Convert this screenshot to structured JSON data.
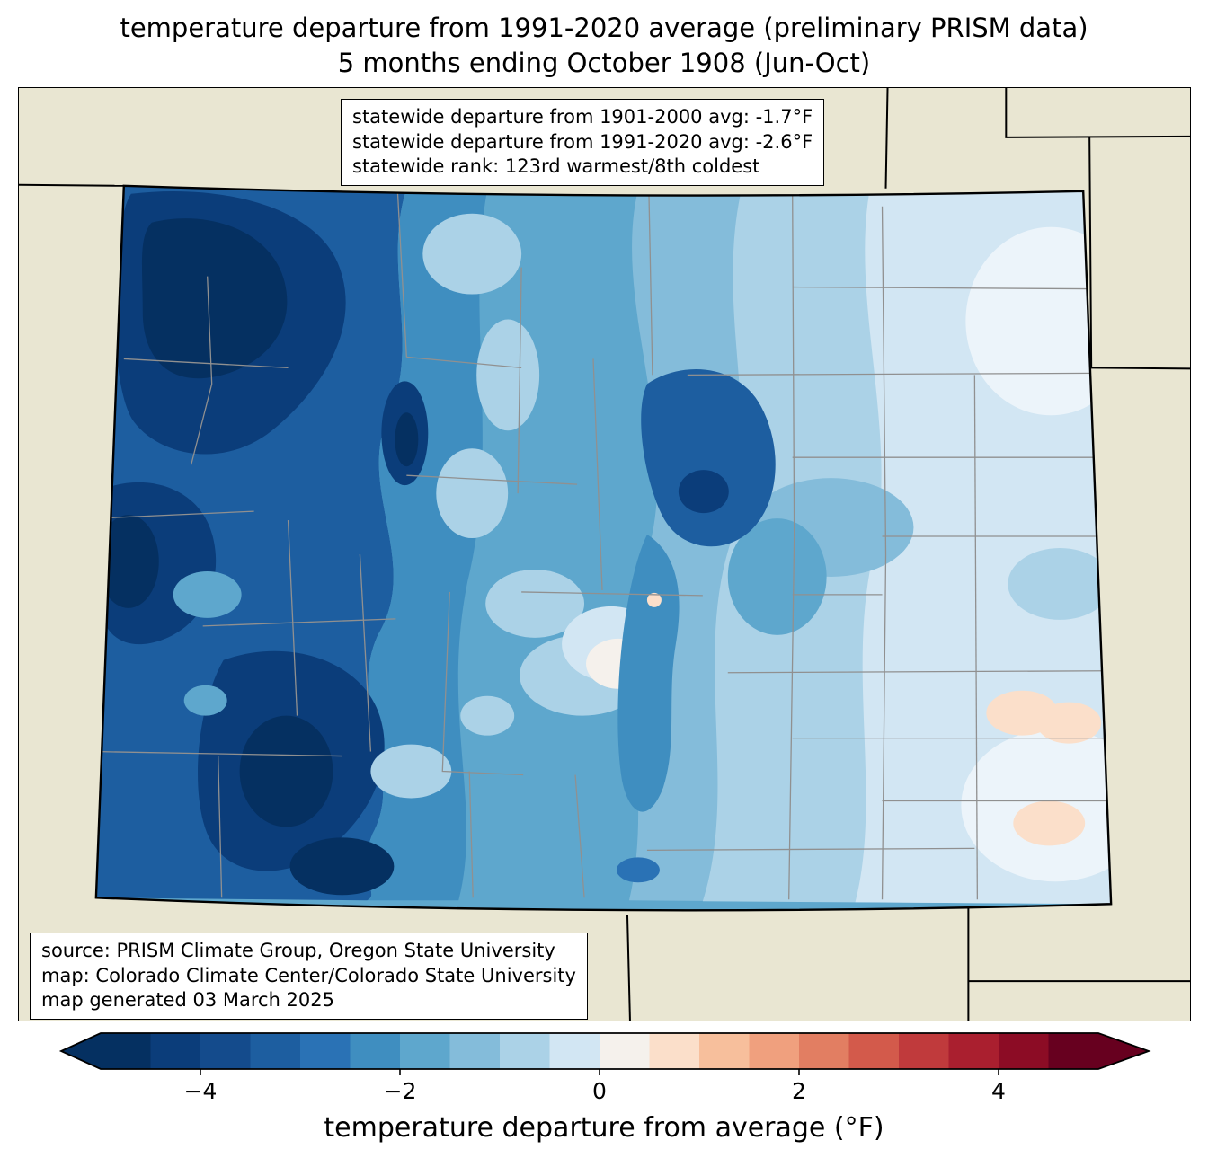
{
  "title": {
    "line1": "temperature departure from 1991-2020 average (preliminary PRISM data)",
    "line2": "5 months ending October 1908 (Jun-Oct)"
  },
  "stats_box": {
    "line1": "statewide departure from 1901-2000 avg: -1.7°F",
    "line2": "statewide departure from 1991-2020 avg: -2.6°F",
    "line3": "statewide rank: 123rd warmest/8th coldest"
  },
  "source_box": {
    "line1": "source: PRISM Climate Group, Oregon State University",
    "line2": "map: Colorado Climate Center/Colorado State University",
    "line3": "map generated 03 March 2025"
  },
  "colorbar": {
    "label": "temperature departure from average (°F)",
    "ticks": [
      "−4",
      "−2",
      "0",
      "2",
      "4"
    ],
    "tick_values": [
      -4,
      -2,
      0,
      2,
      4
    ],
    "range": [
      -5,
      5
    ],
    "segment_step": 0.5,
    "segments": [
      "#053061",
      "#0b3d7a",
      "#144b8c",
      "#1d5ea0",
      "#2a72b5",
      "#3f8ec0",
      "#5ea7cd",
      "#84bcda",
      "#abd2e7",
      "#d2e6f3",
      "#f5f1ec",
      "#fbdfca",
      "#f7bf9c",
      "#f0a07e",
      "#e27e62",
      "#d35a4b",
      "#c03a3c",
      "#aa1f2f",
      "#8c0c25",
      "#67001f"
    ],
    "under_color": "#053061",
    "over_color": "#67001f"
  },
  "map": {
    "background_color": "#e9e6d2",
    "county_line_color": "#909090",
    "state_border_color": "#000000",
    "palest_fill": "#ecf4fa"
  }
}
